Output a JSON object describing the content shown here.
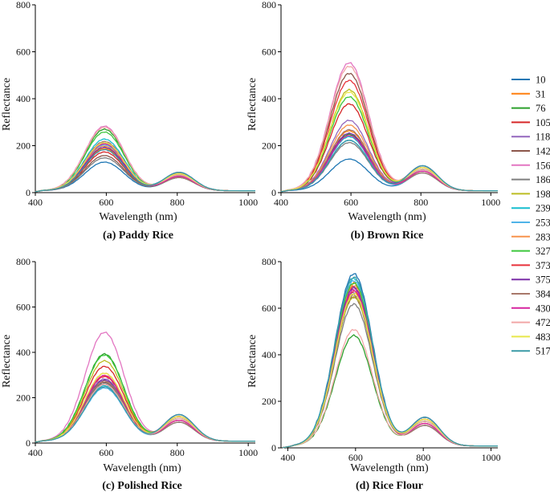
{
  "chart_data": [
    {
      "type": "line",
      "title": "(a) Paddy Rice",
      "xlabel": "Wavelength (nm)",
      "ylabel": "Reflectance",
      "xlim": [
        400,
        1020
      ],
      "ylim": [
        0,
        800
      ],
      "xticks": [
        400,
        600,
        800,
        1000
      ],
      "yticks": [
        0,
        200,
        400,
        600,
        800
      ],
      "series_peaks": [
        122,
        180,
        262,
        165,
        205,
        150,
        275,
        140,
        200,
        220,
        195,
        190,
        250,
        175,
        185,
        210,
        200,
        270,
        205,
        175
      ],
      "second_hump": 70
    },
    {
      "type": "line",
      "title": "(b) Brown Rice",
      "xlabel": "Wavelength (nm)",
      "ylabel": "Reflectance",
      "xlim": [
        400,
        1020
      ],
      "ylim": [
        0,
        800
      ],
      "xticks": [
        400,
        600,
        800,
        1000
      ],
      "yticks": [
        0,
        200,
        400,
        600,
        800
      ],
      "series_peaks": [
        135,
        255,
        240,
        370,
        300,
        500,
        545,
        205,
        430,
        230,
        215,
        280,
        400,
        470,
        245,
        260,
        235,
        530,
        420,
        215
      ],
      "second_hump": 95
    },
    {
      "type": "line",
      "title": "(c) Polished Rice",
      "xlabel": "Wavelength (nm)",
      "ylabel": "Reflectance",
      "xlim": [
        400,
        1020
      ],
      "ylim": [
        0,
        800
      ],
      "xticks": [
        400,
        600,
        800,
        1000
      ],
      "yticks": [
        0,
        200,
        400,
        600,
        800
      ],
      "series_peaks": [
        240,
        290,
        385,
        330,
        275,
        260,
        480,
        255,
        355,
        245,
        235,
        300,
        380,
        285,
        270,
        265,
        290,
        250,
        300,
        240
      ],
      "second_hump": 105
    },
    {
      "type": "line",
      "title": "(d) Rice Flour",
      "xlabel": "Wavelength (nm)",
      "ylabel": "Reflectance",
      "xlim": [
        380,
        1020
      ],
      "ylim": [
        0,
        800
      ],
      "xticks": [
        400,
        600,
        800,
        1000
      ],
      "yticks": [
        0,
        200,
        400,
        600,
        800
      ],
      "series_peaks": [
        740,
        700,
        475,
        685,
        660,
        640,
        675,
        610,
        640,
        720,
        710,
        690,
        700,
        665,
        680,
        650,
        670,
        500,
        655,
        725
      ],
      "second_hump": 110
    }
  ],
  "legend": {
    "entries": [
      "10",
      "31",
      "76",
      "105",
      "118",
      "142",
      "156",
      "186",
      "198",
      "239",
      "253",
      "283",
      "327",
      "373",
      "375",
      "384",
      "430",
      "472",
      "483",
      "517"
    ],
    "colors": [
      "#1f77b4",
      "#ff7f0e",
      "#2ca02c",
      "#d62728",
      "#9467bd",
      "#8c564b",
      "#e377c2",
      "#7f7f7f",
      "#bcbd22",
      "#17becf",
      "#4fb3e8",
      "#f7934c",
      "#3cc63c",
      "#e8313a",
      "#7b2fa8",
      "#a8786a",
      "#d6249f",
      "#f2a7a7",
      "#e8e84a",
      "#3a9aa6"
    ]
  }
}
